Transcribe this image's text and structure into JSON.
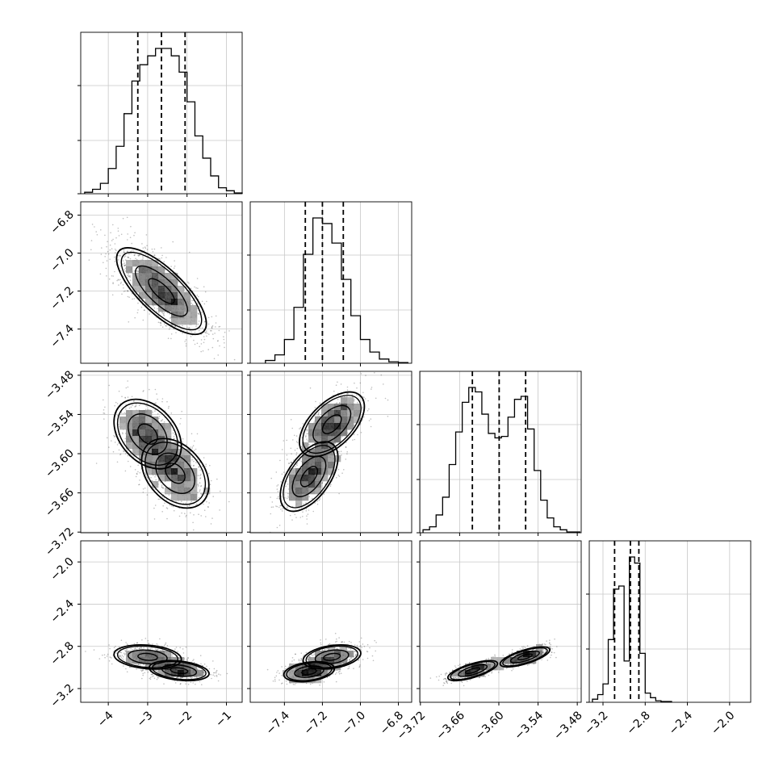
{
  "chart_data": {
    "type": "corner",
    "parameters": [
      {
        "range": [
          -4.7,
          -0.6
        ],
        "quantiles": [
          -3.25,
          -2.65,
          -2.05
        ],
        "ticks": [
          -4,
          -3,
          -2,
          -1
        ],
        "tick_labels": [
          "−4",
          "−3",
          "−2",
          "−1"
        ],
        "label_bottom": true,
        "hist_bins": [
          -4.6,
          -4.4,
          -4.2,
          -4.0,
          -3.8,
          -3.6,
          -3.4,
          -3.2,
          -3.0,
          -2.8,
          -2.6,
          -2.4,
          -2.2,
          -2.0,
          -1.8,
          -1.6,
          -1.4,
          -1.2,
          -1.0,
          -0.8
        ],
        "hist_counts": [
          1,
          3,
          7,
          17,
          32,
          54,
          76,
          87,
          93,
          98,
          98,
          93,
          82,
          62,
          39,
          24,
          12,
          4,
          2,
          0.5
        ]
      },
      {
        "range": [
          -7.58,
          -6.73
        ],
        "quantiles": [
          -7.29,
          -7.2,
          -7.09
        ],
        "ticks": [
          -7.4,
          -7.2,
          -7.0,
          -6.8
        ],
        "tick_labels": [
          "−7.4",
          "−7.2",
          "−7.0",
          "−6.8"
        ],
        "label_bottom": true,
        "label_left": true,
        "hist_bins": [
          -7.5,
          -7.45,
          -7.4,
          -7.35,
          -7.3,
          -7.25,
          -7.2,
          -7.15,
          -7.1,
          -7.05,
          -7.0,
          -6.95,
          -6.9,
          -6.85,
          -6.8
        ],
        "hist_counts": [
          2,
          6,
          17,
          40,
          78,
          104,
          100,
          86,
          60,
          34,
          17,
          8,
          3,
          1,
          0.5
        ]
      },
      {
        "range": [
          -3.721,
          -3.474
        ],
        "quantiles": [
          -3.6405,
          -3.5995,
          -3.559
        ],
        "ticks": [
          -3.72,
          -3.66,
          -3.6,
          -3.54,
          -3.48
        ],
        "tick_labels": [
          "−3.72",
          "−3.66",
          "−3.60",
          "−3.54",
          "−3.48"
        ],
        "label_bottom": true,
        "label_left": true,
        "hist_bins": [
          -3.716,
          -3.706,
          -3.696,
          -3.686,
          -3.676,
          -3.666,
          -3.656,
          -3.646,
          -3.636,
          -3.626,
          -3.616,
          -3.606,
          -3.596,
          -3.586,
          -3.576,
          -3.566,
          -3.556,
          -3.546,
          -3.536,
          -3.526,
          -3.516,
          -3.506,
          -3.496,
          -3.486
        ],
        "hist_counts": [
          2,
          4,
          12,
          24,
          46,
          68,
          88,
          98,
          95,
          80,
          67,
          64,
          65,
          78,
          90,
          92,
          70,
          42,
          22,
          10,
          4,
          2,
          0.5,
          0.5
        ]
      },
      {
        "range": [
          -3.33,
          -1.8
        ],
        "quantiles": [
          -3.09,
          -2.94,
          -2.86
        ],
        "ticks": [
          -3.2,
          -2.8,
          -2.4,
          -2.0
        ],
        "tick_labels": [
          "−3.2",
          "−2.8",
          "−2.4",
          "−2.0"
        ],
        "label_bottom": true,
        "label_left": true,
        "hist_bins": [
          -3.3,
          -3.25,
          -3.2,
          -3.15,
          -3.1,
          -3.05,
          -3.0,
          -2.95,
          -2.9,
          -2.85,
          -2.8,
          -2.75,
          -2.7,
          -2.65,
          -2.6
        ],
        "hist_counts": [
          2,
          5,
          12,
          41,
          74,
          76,
          27,
          95,
          91,
          32,
          6,
          3,
          1,
          0.5,
          0.5
        ]
      }
    ],
    "pairs": [
      {
        "row": 1,
        "col": 0,
        "mean": [
          -2.65,
          -7.2
        ],
        "sd": [
          0.6,
          0.12
        ],
        "rho": -0.75
      },
      {
        "row": 2,
        "col": 0,
        "components": [
          {
            "mean": [
              -3.0,
              -3.57
            ],
            "sd": [
              0.45,
              0.028
            ],
            "rho": -0.35,
            "w": 0.5
          },
          {
            "mean": [
              -2.3,
              -3.63
            ],
            "sd": [
              0.45,
              0.028
            ],
            "rho": -0.35,
            "w": 0.5
          }
        ]
      },
      {
        "row": 2,
        "col": 1,
        "components": [
          {
            "mean": [
              -7.15,
              -3.555
            ],
            "sd": [
              0.09,
              0.026
            ],
            "rho": 0.55,
            "w": 0.5
          },
          {
            "mean": [
              -7.27,
              -3.635
            ],
            "sd": [
              0.08,
              0.028
            ],
            "rho": 0.55,
            "w": 0.5
          }
        ]
      },
      {
        "row": 3,
        "col": 0,
        "components": [
          {
            "mean": [
              -3.0,
              -2.9
            ],
            "sd": [
              0.45,
              0.06
            ],
            "rho": -0.2,
            "w": 0.5
          },
          {
            "mean": [
              -2.2,
              -3.03
            ],
            "sd": [
              0.4,
              0.05
            ],
            "rho": -0.3,
            "w": 0.5
          }
        ]
      },
      {
        "row": 3,
        "col": 1,
        "components": [
          {
            "mean": [
              -7.15,
              -2.9
            ],
            "sd": [
              0.08,
              0.06
            ],
            "rho": 0.3,
            "w": 0.5
          },
          {
            "mean": [
              -7.27,
              -3.04
            ],
            "sd": [
              0.07,
              0.05
            ],
            "rho": 0.3,
            "w": 0.5
          }
        ]
      },
      {
        "row": 3,
        "col": 2,
        "components": [
          {
            "mean": [
              -3.56,
              -2.9
            ],
            "sd": [
              0.02,
              0.05
            ],
            "rho": 0.7,
            "w": 0.5
          },
          {
            "mean": [
              -3.64,
              -3.03
            ],
            "sd": [
              0.02,
              0.05
            ],
            "rho": 0.7,
            "w": 0.5
          }
        ]
      }
    ],
    "grid": true,
    "xlabel": "",
    "ylabel": ""
  }
}
